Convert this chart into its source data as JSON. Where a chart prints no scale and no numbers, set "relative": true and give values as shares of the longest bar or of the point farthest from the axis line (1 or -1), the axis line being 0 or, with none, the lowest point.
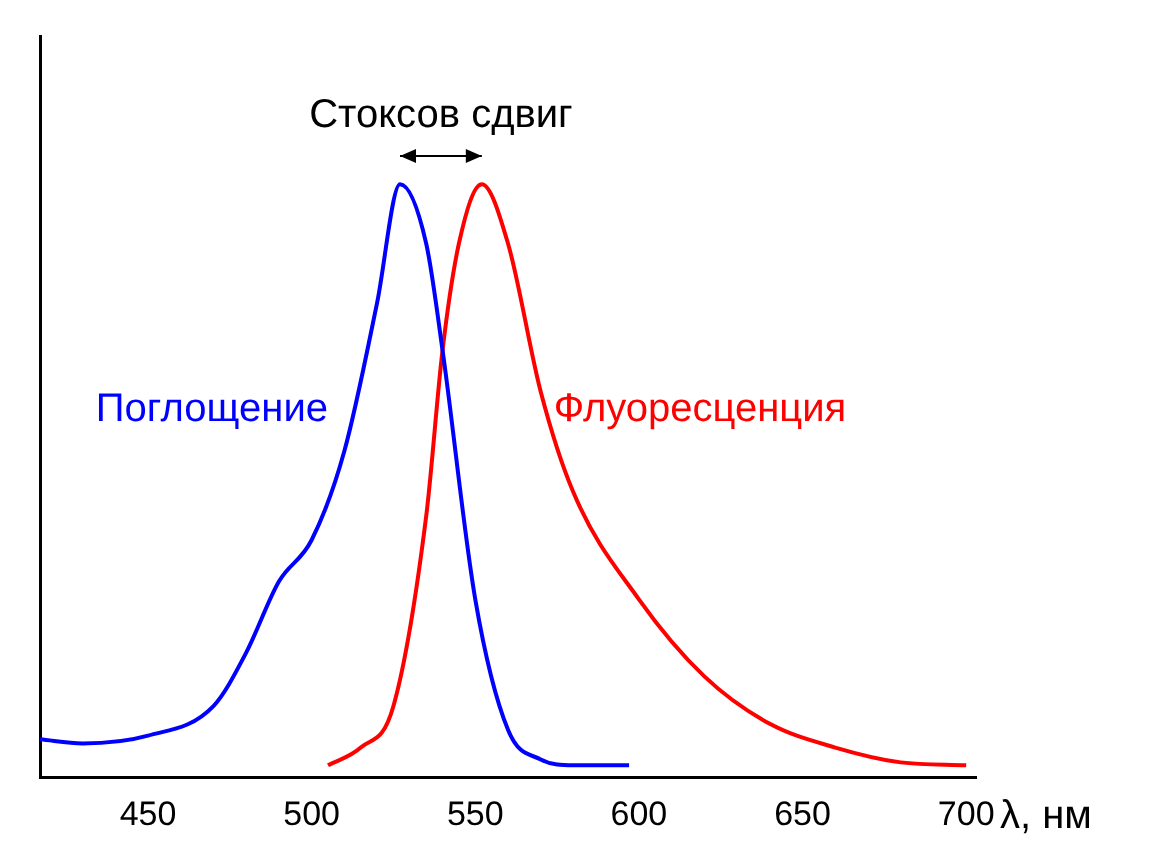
{
  "chart_data": {
    "type": "line",
    "relative": true,
    "xlabel": "λ, нм",
    "xlim": [
      417,
      703
    ],
    "xticks": [
      450,
      500,
      550,
      600,
      650,
      700
    ],
    "annotations": [
      "Стоксов сдвиг"
    ],
    "grid": false,
    "legend": false,
    "marker": "none",
    "line_style": "solid",
    "series": [
      {
        "name": "Поглощение",
        "color": "#0000ff",
        "x": [
          417,
          430,
          450,
          470,
          480,
          490,
          500,
          510,
          520,
          527,
          535,
          540,
          550,
          560,
          570,
          580,
          597
        ],
        "values": [
          0.064,
          0.057,
          0.07,
          0.12,
          0.21,
          0.33,
          0.4,
          0.55,
          0.8,
          1,
          0.9,
          0.72,
          0.3,
          0.08,
          0.03,
          0.02,
          0.02
        ]
      },
      {
        "name": "Флуоресценция",
        "color": "#ff0000",
        "x": [
          505,
          515,
          525,
          535,
          540,
          545,
          552,
          560,
          570,
          580,
          600,
          620,
          640,
          660,
          680,
          700
        ],
        "values": [
          0.02,
          0.05,
          0.12,
          0.44,
          0.72,
          0.9,
          1,
          0.9,
          0.65,
          0.48,
          0.3,
          0.17,
          0.09,
          0.05,
          0.025,
          0.02
        ]
      }
    ]
  }
}
